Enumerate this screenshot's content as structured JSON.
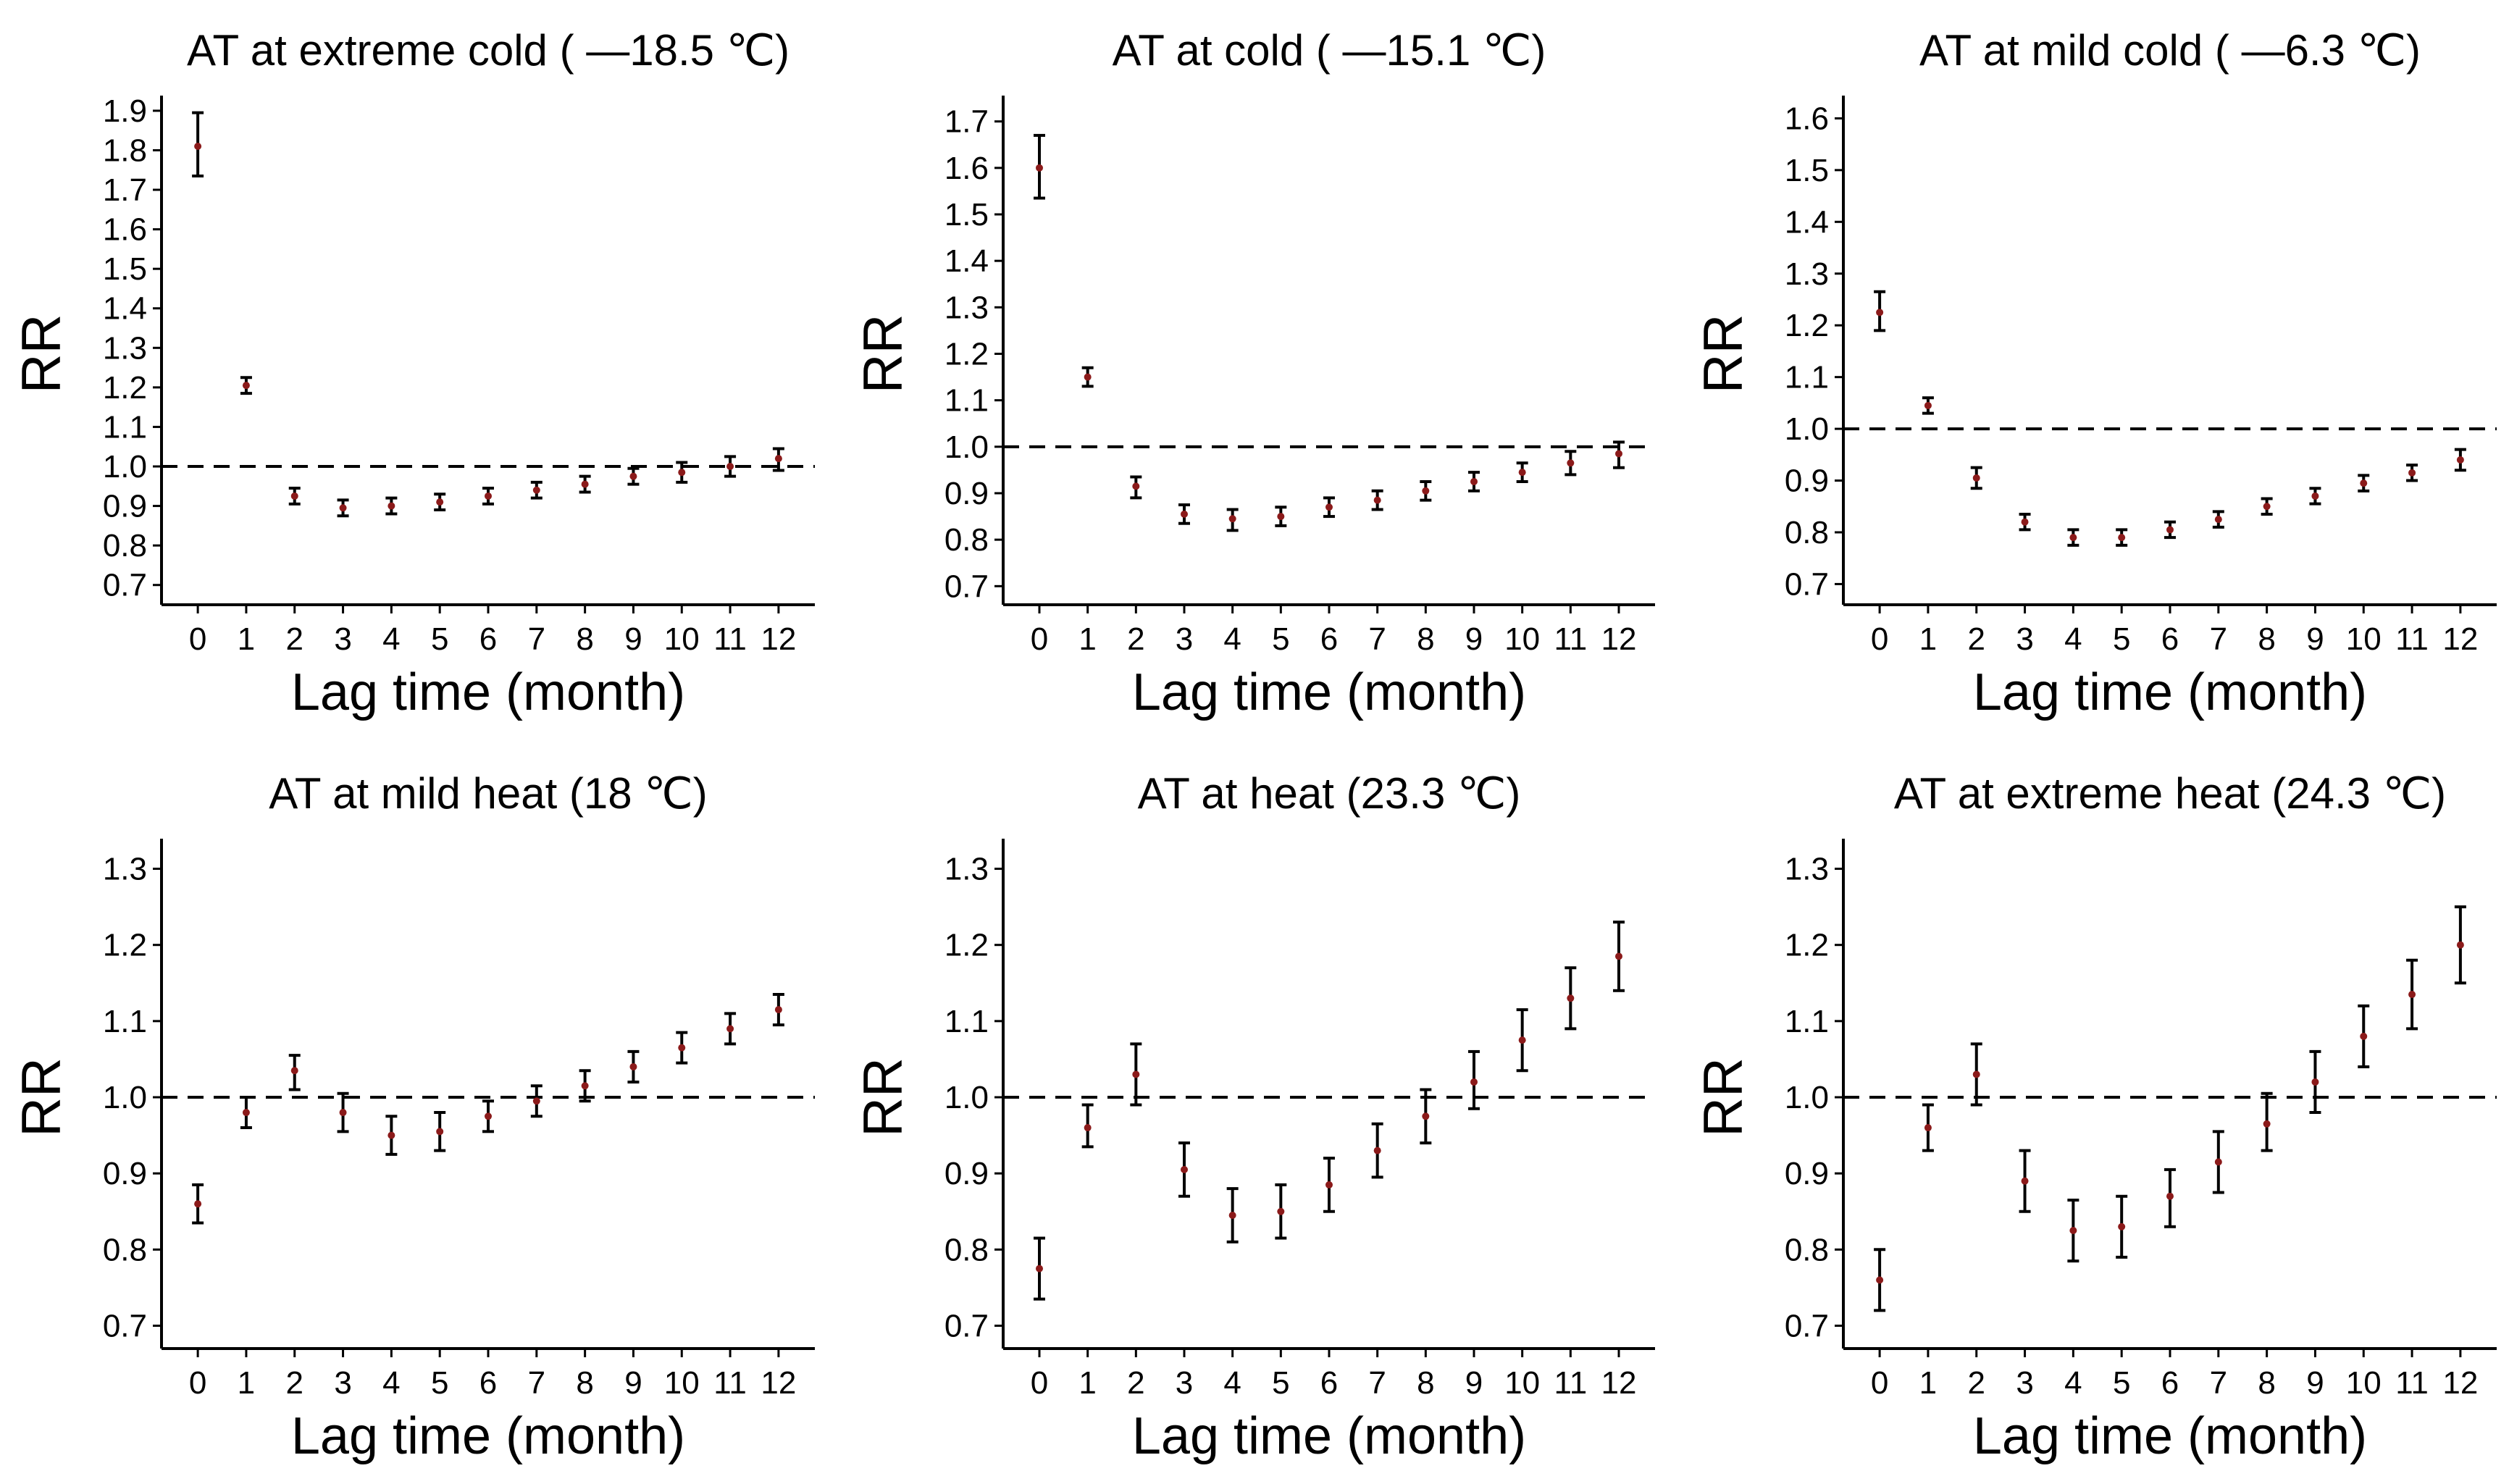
{
  "chart_data": [
    {
      "type": "errorbar",
      "title": "AT at extreme cold ( —18.5 ℃)",
      "xlabel": "Lag time (month)",
      "ylabel": "RR",
      "ylim": [
        0.65,
        1.92
      ],
      "yticks": [
        "0.7",
        "0.8",
        "0.9",
        "1.0",
        "1.1",
        "1.2",
        "1.3",
        "1.4",
        "1.5",
        "1.6",
        "1.7",
        "1.8",
        "1.9"
      ],
      "xticks": [
        "0",
        "1",
        "2",
        "3",
        "4",
        "5",
        "6",
        "7",
        "8",
        "9",
        "10",
        "11",
        "12"
      ],
      "reference_line": 1.0,
      "x": [
        0,
        1,
        2,
        3,
        4,
        5,
        6,
        7,
        8,
        9,
        10,
        11,
        12
      ],
      "estimate": [
        1.81,
        1.205,
        0.925,
        0.895,
        0.9,
        0.91,
        0.925,
        0.94,
        0.955,
        0.975,
        0.985,
        1.0,
        1.02
      ],
      "lower": [
        1.735,
        1.185,
        0.905,
        0.875,
        0.88,
        0.89,
        0.905,
        0.92,
        0.935,
        0.955,
        0.96,
        0.975,
        0.99
      ],
      "upper": [
        1.895,
        1.225,
        0.945,
        0.915,
        0.92,
        0.93,
        0.945,
        0.96,
        0.975,
        0.995,
        1.01,
        1.025,
        1.045
      ]
    },
    {
      "type": "errorbar",
      "title": "AT at cold ( —15.1 ℃)",
      "xlabel": "Lag time (month)",
      "ylabel": "RR",
      "ylim": [
        0.66,
        1.74
      ],
      "yticks": [
        "0.7",
        "0.8",
        "0.9",
        "1.0",
        "1.1",
        "1.2",
        "1.3",
        "1.4",
        "1.5",
        "1.6",
        "1.7"
      ],
      "xticks": [
        "0",
        "1",
        "2",
        "3",
        "4",
        "5",
        "6",
        "7",
        "8",
        "9",
        "10",
        "11",
        "12"
      ],
      "reference_line": 1.0,
      "x": [
        0,
        1,
        2,
        3,
        4,
        5,
        6,
        7,
        8,
        9,
        10,
        11,
        12
      ],
      "estimate": [
        1.6,
        1.15,
        0.915,
        0.855,
        0.845,
        0.85,
        0.87,
        0.885,
        0.905,
        0.925,
        0.945,
        0.965,
        0.985
      ],
      "lower": [
        1.535,
        1.13,
        0.89,
        0.835,
        0.82,
        0.83,
        0.85,
        0.865,
        0.885,
        0.905,
        0.925,
        0.94,
        0.955
      ],
      "upper": [
        1.67,
        1.17,
        0.935,
        0.875,
        0.865,
        0.87,
        0.89,
        0.905,
        0.925,
        0.945,
        0.965,
        0.99,
        1.01
      ]
    },
    {
      "type": "errorbar",
      "title": "AT at mild cold ( —6.3 ℃)",
      "xlabel": "Lag time (month)",
      "ylabel": "RR",
      "ylim": [
        0.66,
        1.63
      ],
      "yticks": [
        "0.7",
        "0.8",
        "0.9",
        "1.0",
        "1.1",
        "1.2",
        "1.3",
        "1.4",
        "1.5",
        "1.6"
      ],
      "xticks": [
        "0",
        "1",
        "2",
        "3",
        "4",
        "5",
        "6",
        "7",
        "8",
        "9",
        "10",
        "11",
        "12"
      ],
      "reference_line": 1.0,
      "x": [
        0,
        1,
        2,
        3,
        4,
        5,
        6,
        7,
        8,
        9,
        10,
        11,
        12
      ],
      "estimate": [
        1.225,
        1.045,
        0.905,
        0.82,
        0.79,
        0.79,
        0.805,
        0.825,
        0.85,
        0.87,
        0.895,
        0.915,
        0.94
      ],
      "lower": [
        1.19,
        1.03,
        0.885,
        0.805,
        0.775,
        0.775,
        0.79,
        0.81,
        0.835,
        0.855,
        0.88,
        0.9,
        0.92
      ],
      "upper": [
        1.265,
        1.06,
        0.925,
        0.835,
        0.805,
        0.805,
        0.82,
        0.84,
        0.865,
        0.885,
        0.91,
        0.93,
        0.96
      ]
    },
    {
      "type": "errorbar",
      "title": "AT at mild heat (18 ℃)",
      "xlabel": "Lag time (month)",
      "ylabel": "RR",
      "ylim": [
        0.67,
        1.33
      ],
      "yticks": [
        "0.7",
        "0.8",
        "0.9",
        "1.0",
        "1.1",
        "1.2",
        "1.3"
      ],
      "xticks": [
        "0",
        "1",
        "2",
        "3",
        "4",
        "5",
        "6",
        "7",
        "8",
        "9",
        "10",
        "11",
        "12"
      ],
      "reference_line": 1.0,
      "x": [
        0,
        1,
        2,
        3,
        4,
        5,
        6,
        7,
        8,
        9,
        10,
        11,
        12
      ],
      "estimate": [
        0.86,
        0.98,
        1.035,
        0.98,
        0.95,
        0.955,
        0.975,
        0.995,
        1.015,
        1.04,
        1.065,
        1.09,
        1.115
      ],
      "lower": [
        0.835,
        0.96,
        1.01,
        0.955,
        0.925,
        0.93,
        0.955,
        0.975,
        0.995,
        1.02,
        1.045,
        1.07,
        1.095
      ],
      "upper": [
        0.885,
        1.0,
        1.055,
        1.005,
        0.975,
        0.98,
        0.995,
        1.015,
        1.035,
        1.06,
        1.085,
        1.11,
        1.135
      ]
    },
    {
      "type": "errorbar",
      "title": "AT at heat (23.3 ℃)",
      "xlabel": "Lag time (month)",
      "ylabel": "RR",
      "ylim": [
        0.67,
        1.33
      ],
      "yticks": [
        "0.7",
        "0.8",
        "0.9",
        "1.0",
        "1.1",
        "1.2",
        "1.3"
      ],
      "xticks": [
        "0",
        "1",
        "2",
        "3",
        "4",
        "5",
        "6",
        "7",
        "8",
        "9",
        "10",
        "11",
        "12"
      ],
      "reference_line": 1.0,
      "x": [
        0,
        1,
        2,
        3,
        4,
        5,
        6,
        7,
        8,
        9,
        10,
        11,
        12
      ],
      "estimate": [
        0.775,
        0.96,
        1.03,
        0.905,
        0.845,
        0.85,
        0.885,
        0.93,
        0.975,
        1.02,
        1.075,
        1.13,
        1.185
      ],
      "lower": [
        0.735,
        0.935,
        0.99,
        0.87,
        0.81,
        0.815,
        0.85,
        0.895,
        0.94,
        0.985,
        1.035,
        1.09,
        1.14
      ],
      "upper": [
        0.815,
        0.99,
        1.07,
        0.94,
        0.88,
        0.885,
        0.92,
        0.965,
        1.01,
        1.06,
        1.115,
        1.17,
        1.23
      ]
    },
    {
      "type": "errorbar",
      "title": "AT at extreme heat (24.3 ℃)",
      "xlabel": "Lag time (month)",
      "ylabel": "RR",
      "ylim": [
        0.67,
        1.33
      ],
      "yticks": [
        "0.7",
        "0.8",
        "0.9",
        "1.0",
        "1.1",
        "1.2",
        "1.3"
      ],
      "xticks": [
        "0",
        "1",
        "2",
        "3",
        "4",
        "5",
        "6",
        "7",
        "8",
        "9",
        "10",
        "11",
        "12"
      ],
      "reference_line": 1.0,
      "x": [
        0,
        1,
        2,
        3,
        4,
        5,
        6,
        7,
        8,
        9,
        10,
        11,
        12
      ],
      "estimate": [
        0.76,
        0.96,
        1.03,
        0.89,
        0.825,
        0.83,
        0.87,
        0.915,
        0.965,
        1.02,
        1.08,
        1.135,
        1.2
      ],
      "lower": [
        0.72,
        0.93,
        0.99,
        0.85,
        0.785,
        0.79,
        0.83,
        0.875,
        0.93,
        0.98,
        1.04,
        1.09,
        1.15
      ],
      "upper": [
        0.8,
        0.99,
        1.07,
        0.93,
        0.865,
        0.87,
        0.905,
        0.955,
        1.005,
        1.06,
        1.12,
        1.18,
        1.25
      ]
    }
  ],
  "colors": {
    "point": "#8b1a1a",
    "errorbar": "#000000",
    "axis": "#000000",
    "reference_line": "#000000"
  }
}
